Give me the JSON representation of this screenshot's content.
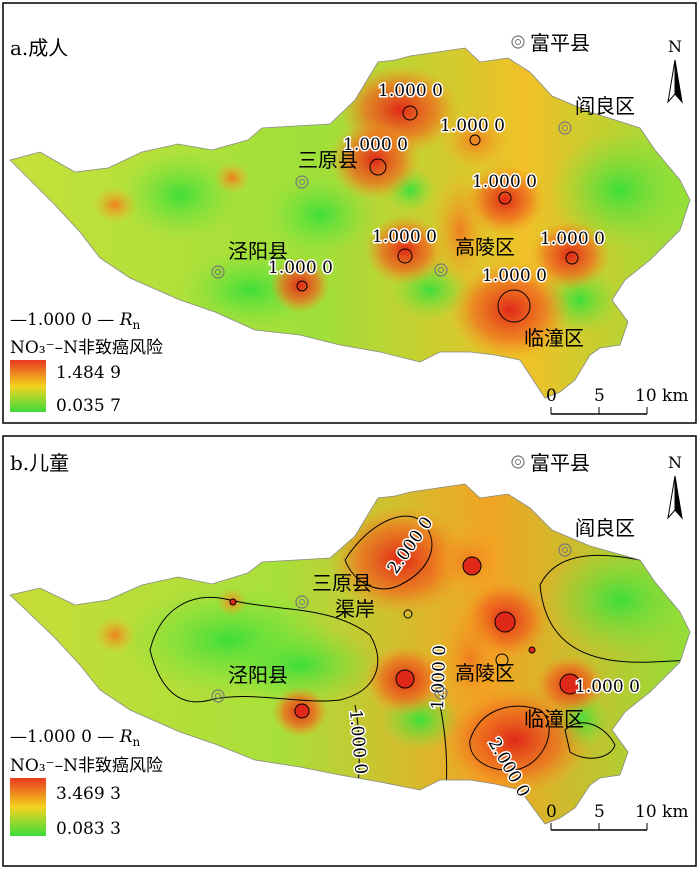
{
  "panels": [
    {
      "id": "a",
      "title": "a.成人",
      "north": "N",
      "legend": {
        "line_label_prefix": "—1.000 0 — ",
        "line_label_var": "R",
        "line_label_sub": "n",
        "title": "NO₃⁻–N非致癌风险",
        "max": "1.484 9",
        "min": "0.035 7",
        "max_value": 1.4849,
        "min_value": 0.0357
      },
      "scale": {
        "ticks": [
          "0",
          "5",
          "10 km"
        ]
      },
      "places": [
        "富平县",
        "阎良区",
        "三原县",
        "泾阳县",
        "高陵区",
        "临潼区"
      ],
      "contour_labels": [
        "1.000 0",
        "1.000 0",
        "1.000 0",
        "1.000 0",
        "1.000 0",
        "1.000 0",
        "1.000 0",
        "1.000 0"
      ]
    },
    {
      "id": "b",
      "title": "b.儿童",
      "north": "N",
      "legend": {
        "line_label_prefix": "—1.000 0 — ",
        "line_label_var": "R",
        "line_label_sub": "n",
        "title": "NO₃⁻–N非致癌风险",
        "max": "3.469 3",
        "min": "0.083 3",
        "max_value": 3.4693,
        "min_value": 0.0833
      },
      "scale": {
        "ticks": [
          "0",
          "5",
          "10 km"
        ]
      },
      "places": [
        "富平县",
        "阎良区",
        "三原县",
        "渠岸",
        "泾阳县",
        "高陵区",
        "临潼区"
      ],
      "contour_labels": [
        "2.000 0",
        "1.000 0",
        "1.000 0",
        "1.000 0",
        "2.000 0"
      ]
    }
  ],
  "colors": {
    "high": "#e83820",
    "mid": "#f5d21e",
    "low": "#3cdc3c"
  }
}
